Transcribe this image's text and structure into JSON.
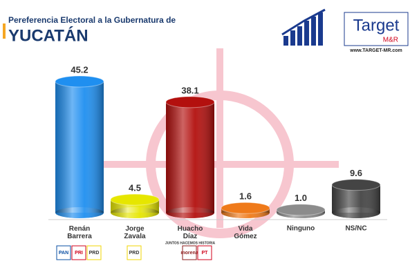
{
  "chart_data": {
    "type": "bar",
    "title": "Pereferencia Electoral a la Gubernatura de",
    "subtitle": "YUCATÁN",
    "brand": {
      "name": "Target",
      "sub": "M&R",
      "url": "www.TARGET-MR.com"
    },
    "categories": [
      "Renán Barrera",
      "Jorge Zavala",
      "Huacho Díaz",
      "Vida Gómez",
      "Ninguno",
      "NS/NC"
    ],
    "series": [
      {
        "name": "Preferencia",
        "values": [
          45.2,
          4.5,
          38.1,
          1.6,
          1.0,
          9.6
        ],
        "value_labels": [
          "45.2",
          "4.5",
          "38.1",
          "1.6",
          "1.0",
          "9.6"
        ],
        "colors": [
          "#1f8ff0",
          "#e6e600",
          "#b3100e",
          "#ef7a1a",
          "#8c8c8c",
          "#444444"
        ]
      }
    ],
    "party_logos": [
      [
        "PAN",
        "PRI",
        "PRD"
      ],
      [
        "PRD"
      ],
      [
        "JUNTOS HACEMOS HISTORIA",
        "morena",
        "PT"
      ]
    ]
  }
}
